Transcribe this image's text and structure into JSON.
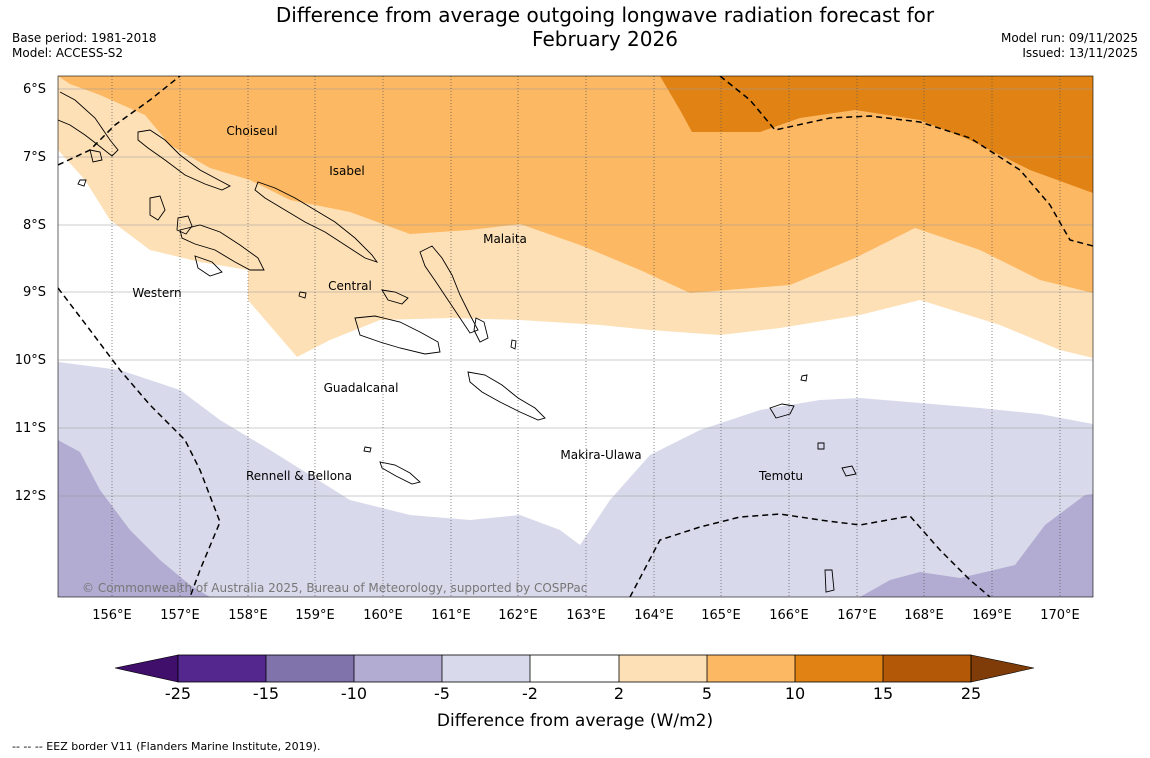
{
  "title": {
    "line1": "Difference from average outgoing longwave radiation forecast for",
    "line2": "February 2026"
  },
  "meta": {
    "base_period": "Base period: 1981-2018",
    "model": "Model: ACCESS-S2",
    "model_run": "Model run: 09/11/2025",
    "issued": "Issued: 13/11/2025"
  },
  "map": {
    "lat_labels": [
      "6°S",
      "7°S",
      "8°S",
      "9°S",
      "10°S",
      "11°S",
      "12°S"
    ],
    "lon_labels": [
      "156°E",
      "157°E",
      "158°E",
      "159°E",
      "160°E",
      "161°E",
      "162°E",
      "163°E",
      "164°E",
      "165°E",
      "166°E",
      "167°E",
      "168°E",
      "169°E",
      "170°E"
    ],
    "regions": [
      "Choiseul",
      "Isabel",
      "Malaita",
      "Western",
      "Central",
      "Guadalcanal",
      "Makira-Ulawa",
      "Rennell & Bellona",
      "Temotu"
    ],
    "copyright": "© Commonwealth of Australia 2025, Bureau of Meteorology, supported by COSPPac"
  },
  "legend": {
    "ticks": [
      "-25",
      "-15",
      "-10",
      "-5",
      "-2",
      "2",
      "5",
      "10",
      "15",
      "25"
    ],
    "colors": [
      "#3f0f6b",
      "#54278f",
      "#8073ac",
      "#b2abd2",
      "#d8daeb",
      "#ffffff",
      "#fee0b6",
      "#fdb863",
      "#e08214",
      "#b35806",
      "#7f3b08"
    ],
    "label": "Difference from average (W/m2)"
  },
  "footer": "--  --  -- EEZ border V11 (Flanders Marine Institute, 2019)."
}
